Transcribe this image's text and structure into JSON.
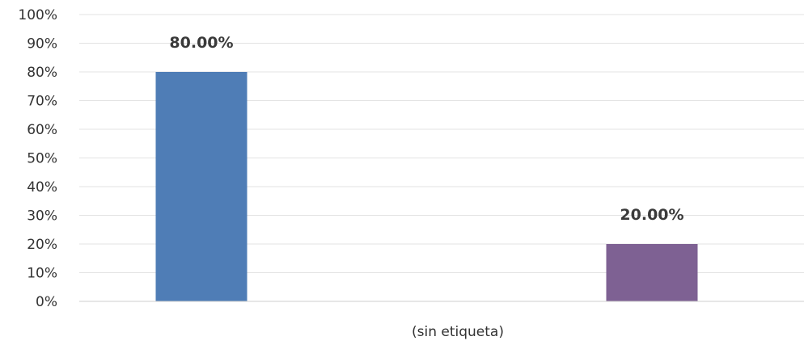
{
  "chart_data": {
    "type": "bar",
    "categories": [
      "(sin etiqueta)"
    ],
    "series": [
      {
        "values": [
          80.0
        ],
        "color": "#4f7db6",
        "label": "80.00%"
      },
      {
        "values": [
          20.0
        ],
        "color": "#7e6193",
        "label": "20.00%"
      }
    ],
    "y_ticks": [
      "0%",
      "10%",
      "20%",
      "30%",
      "40%",
      "50%",
      "60%",
      "70%",
      "80%",
      "90%",
      "100%"
    ],
    "ylim": [
      0,
      100
    ],
    "grid": true,
    "legend": "none",
    "title": "",
    "xlabel": "",
    "ylabel": ""
  }
}
